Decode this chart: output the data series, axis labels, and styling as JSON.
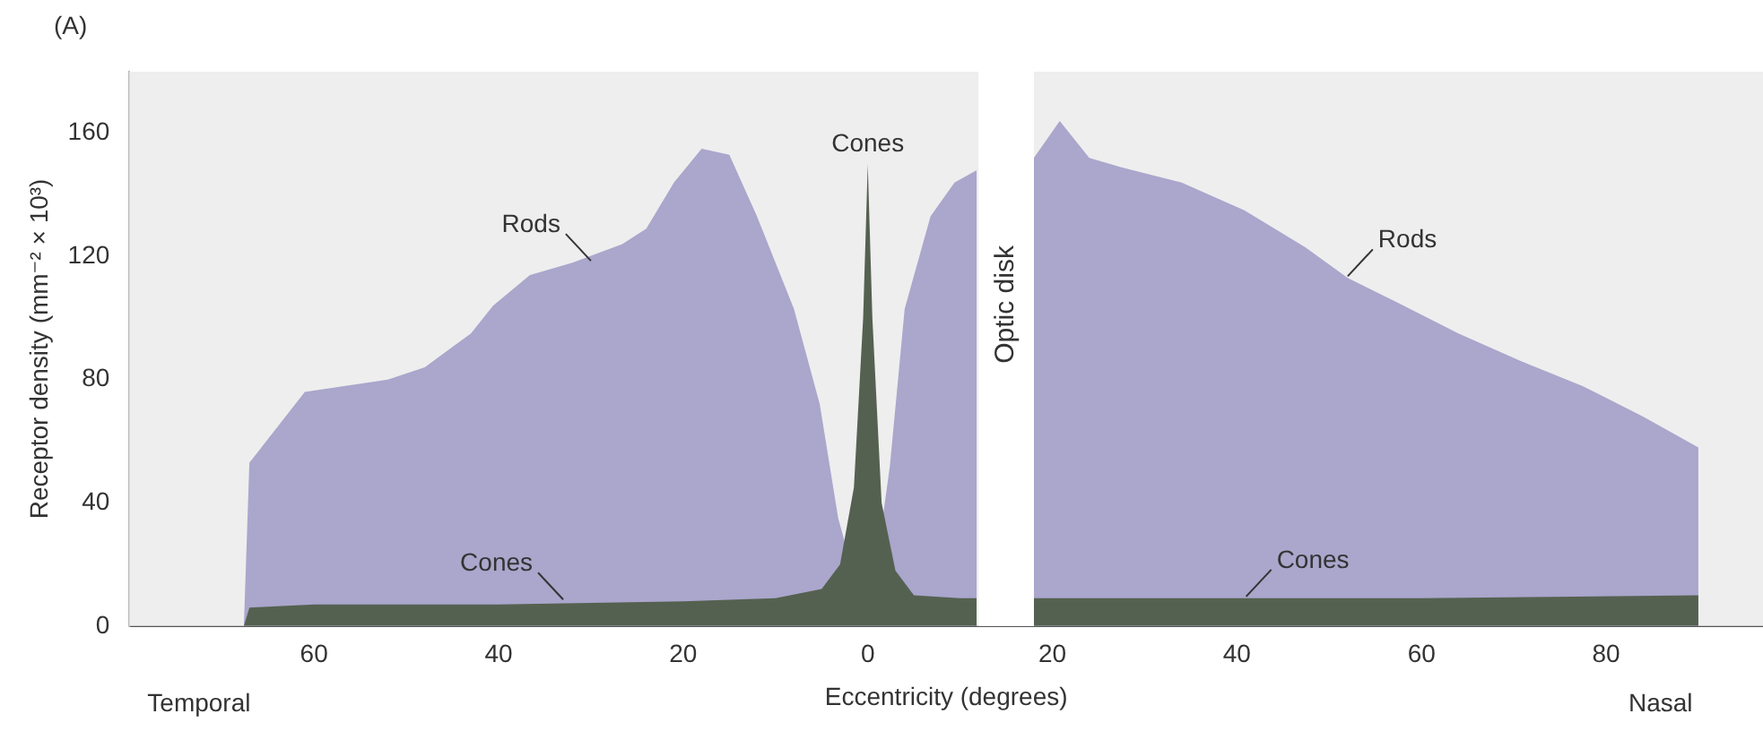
{
  "chart_data": {
    "type": "area",
    "ylabel": "Receptor density (mm⁻² × 10³)",
    "xlabel": "Eccentricity (degrees)",
    "xlim": [
      -80,
      97
    ],
    "ylim": [
      0,
      180
    ],
    "xticks": [
      {
        "value": -60,
        "label": "60"
      },
      {
        "value": -40,
        "label": "40"
      },
      {
        "value": -20,
        "label": "20"
      },
      0,
      20,
      40,
      60,
      80
    ],
    "yticks": [
      0,
      40,
      80,
      120,
      160
    ],
    "grid": false,
    "legend": false,
    "series": [
      {
        "color": "#aaa6cc",
        "x": [
          -67.6,
          -67,
          -61,
          -52,
          -48,
          -43,
          -40.6,
          -36.6,
          -32,
          -26.6,
          -24,
          -21,
          -18,
          -15,
          -12,
          -8,
          -5.2,
          -3.2,
          0,
          2.4,
          4,
          6.8,
          9.4,
          11.8,
          15,
          18,
          20.8,
          24,
          27.4,
          34,
          40.8,
          47.4,
          52,
          57.4,
          64,
          70.8,
          77.4,
          84,
          90
        ],
        "values": [
          0,
          53,
          76,
          80,
          84,
          95,
          104,
          114,
          118,
          124,
          129,
          144,
          155,
          153,
          133,
          103,
          72,
          35,
          0,
          52,
          103,
          133,
          144,
          148,
          null,
          152,
          164,
          152,
          149,
          144,
          135,
          123,
          113,
          105,
          95,
          86,
          78,
          68,
          58
        ]
      },
      {
        "color": "#556150",
        "x": [
          -67.6,
          -67,
          -60,
          -40,
          -20,
          -10,
          -5,
          -3,
          -1.5,
          -0.5,
          0,
          0.5,
          1.5,
          3,
          5,
          10,
          11.8,
          15,
          18,
          40,
          60,
          90
        ],
        "values": [
          0,
          6,
          7,
          7,
          8,
          9,
          12,
          20,
          45,
          100,
          150,
          100,
          40,
          18,
          10,
          9,
          9,
          null,
          9,
          9,
          9,
          10
        ]
      }
    ],
    "bands": [
      {
        "axis": "x",
        "from": 12,
        "to": 18,
        "label": "Optic disk",
        "color": "#ffffff"
      }
    ],
    "annotations": [
      "(A)",
      "Temporal",
      "Nasal",
      {
        "text": "Rods",
        "x": -30,
        "y": 118
      },
      {
        "text": "Rods",
        "x": 52,
        "y": 113
      },
      {
        "text": "Cones",
        "x": 0,
        "y": 150
      },
      {
        "text": "Cones",
        "x": -33,
        "y": 8
      },
      {
        "text": "Cones",
        "x": 41,
        "y": 9
      }
    ]
  }
}
